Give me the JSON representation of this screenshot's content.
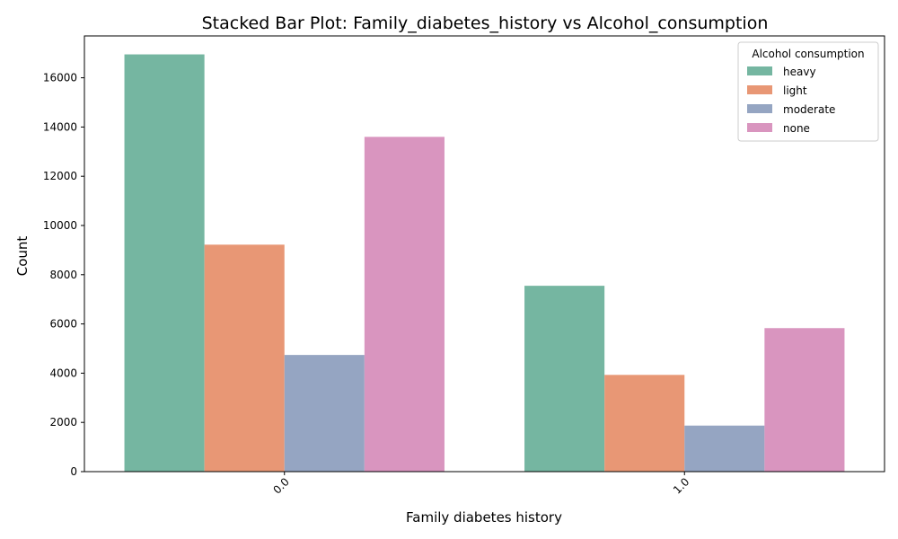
{
  "chart_data": {
    "type": "bar",
    "title": "Stacked Bar Plot: Family_diabetes_history vs Alcohol_consumption",
    "xlabel": "Family diabetes history",
    "ylabel": "Count",
    "categories": [
      "0.0",
      "1.0"
    ],
    "ylim": [
      0,
      17700
    ],
    "yticks": [
      0,
      2000,
      4000,
      6000,
      8000,
      10000,
      12000,
      14000,
      16000
    ],
    "legend_title": "Alcohol consumption",
    "legend_position": "top-right",
    "grid": false,
    "series": [
      {
        "name": "heavy",
        "color": "#75b6a1",
        "values": [
          16950,
          7550
        ]
      },
      {
        "name": "light",
        "color": "#e89775",
        "values": [
          9220,
          3930
        ]
      },
      {
        "name": "moderate",
        "color": "#95a5c2",
        "values": [
          4740,
          1870
        ]
      },
      {
        "name": "none",
        "color": "#d995bf",
        "values": [
          13600,
          5830
        ]
      }
    ]
  }
}
